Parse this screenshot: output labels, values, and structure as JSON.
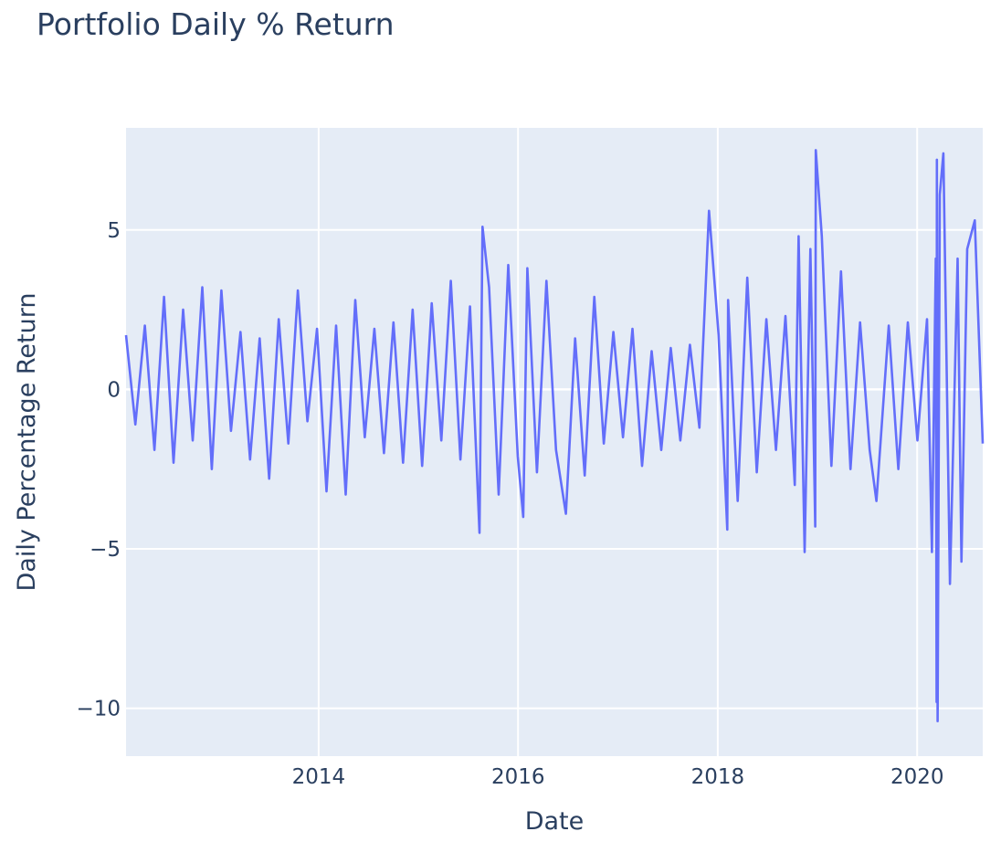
{
  "chart_data": {
    "type": "line",
    "title": "Portfolio Daily % Return",
    "xlabel": "Date",
    "ylabel": "Daily Percentage Return",
    "xlim": [
      "2012-01-27",
      "2020-08-28"
    ],
    "ylim": [
      -11.5,
      8.2
    ],
    "x_ticks": [
      {
        "date": "2014-01-01",
        "label": "2014"
      },
      {
        "date": "2016-01-01",
        "label": "2016"
      },
      {
        "date": "2018-01-01",
        "label": "2018"
      },
      {
        "date": "2020-01-01",
        "label": "2020"
      }
    ],
    "y_ticks": [
      {
        "value": 5,
        "label": "5"
      },
      {
        "value": 0,
        "label": "0"
      },
      {
        "value": -5,
        "label": "−5"
      },
      {
        "value": -10,
        "label": "−10"
      }
    ],
    "grid": true,
    "legend": "none",
    "colors": {
      "line": "#636efa",
      "plot_bg": "#e5ecf6",
      "grid": "#ffffff",
      "text": "#2a3f5f"
    },
    "series": [
      {
        "x": [
          "2012-01-27",
          "2012-03-01",
          "2012-04-05",
          "2012-05-10",
          "2012-06-14",
          "2012-07-19",
          "2012-08-23",
          "2012-09-27",
          "2012-11-01",
          "2012-12-06",
          "2013-01-10",
          "2013-02-14",
          "2013-03-21",
          "2013-04-25",
          "2013-05-30",
          "2013-07-04",
          "2013-08-08",
          "2013-09-12",
          "2013-10-17",
          "2013-11-21",
          "2013-12-26",
          "2014-01-30",
          "2014-03-06",
          "2014-04-10",
          "2014-05-15",
          "2014-06-19",
          "2014-07-24",
          "2014-08-28",
          "2014-10-02",
          "2014-11-06",
          "2014-12-11",
          "2015-01-15",
          "2015-02-19",
          "2015-03-26",
          "2015-04-30",
          "2015-06-04",
          "2015-07-09",
          "2015-08-13",
          "2015-08-24",
          "2015-09-17",
          "2015-10-22",
          "2015-11-26",
          "2015-12-31",
          "2016-01-20",
          "2016-02-04",
          "2016-03-10",
          "2016-04-14",
          "2016-05-19",
          "2016-06-24",
          "2016-07-28",
          "2016-09-01",
          "2016-10-06",
          "2016-11-10",
          "2016-12-15",
          "2017-01-19",
          "2017-02-23",
          "2017-03-30",
          "2017-05-04",
          "2017-06-08",
          "2017-07-13",
          "2017-08-17",
          "2017-09-21",
          "2017-10-26",
          "2017-11-30",
          "2018-01-04",
          "2018-02-05",
          "2018-02-08",
          "2018-03-15",
          "2018-04-19",
          "2018-05-24",
          "2018-06-28",
          "2018-08-02",
          "2018-09-06",
          "2018-10-10",
          "2018-10-24",
          "2018-11-15",
          "2018-12-06",
          "2018-12-24",
          "2018-12-26",
          "2019-01-17",
          "2019-02-21",
          "2019-03-28",
          "2019-05-02",
          "2019-06-06",
          "2019-07-11",
          "2019-08-05",
          "2019-09-19",
          "2019-10-24",
          "2019-11-28",
          "2020-01-02",
          "2020-02-06",
          "2020-02-24",
          "2020-03-09",
          "2020-03-12",
          "2020-03-13",
          "2020-03-16",
          "2020-03-24",
          "2020-04-06",
          "2020-04-30",
          "2020-05-28",
          "2020-06-11",
          "2020-07-02",
          "2020-07-30",
          "2020-08-28"
        ],
        "y": [
          1.7,
          -1.1,
          2.0,
          -1.9,
          2.9,
          -2.3,
          2.5,
          -1.6,
          3.2,
          -2.5,
          3.1,
          -1.3,
          1.8,
          -2.2,
          1.6,
          -2.8,
          2.2,
          -1.7,
          3.1,
          -1.0,
          1.9,
          -3.2,
          2.0,
          -3.3,
          2.8,
          -1.5,
          1.9,
          -2.0,
          2.1,
          -2.3,
          2.5,
          -2.4,
          2.7,
          -1.6,
          3.4,
          -2.2,
          2.6,
          -4.5,
          5.1,
          3.2,
          -3.3,
          3.9,
          -2.1,
          -4.0,
          3.8,
          -2.6,
          3.4,
          -1.9,
          -3.9,
          1.6,
          -2.7,
          2.9,
          -1.7,
          1.8,
          -1.5,
          1.9,
          -2.4,
          1.2,
          -1.9,
          1.3,
          -1.6,
          1.4,
          -1.2,
          5.6,
          1.7,
          -4.4,
          2.8,
          -3.5,
          3.5,
          -2.6,
          2.2,
          -1.9,
          2.3,
          -3.0,
          4.8,
          -5.1,
          4.4,
          -4.3,
          7.5,
          4.8,
          -2.4,
          3.7,
          -2.5,
          2.1,
          -1.9,
          -3.5,
          2.0,
          -2.5,
          2.1,
          -1.6,
          2.2,
          -5.1,
          4.1,
          -9.8,
          7.2,
          -10.4,
          6.1,
          7.4,
          -6.1,
          4.1,
          -5.4,
          4.4,
          5.3,
          -1.7
        ]
      }
    ]
  }
}
